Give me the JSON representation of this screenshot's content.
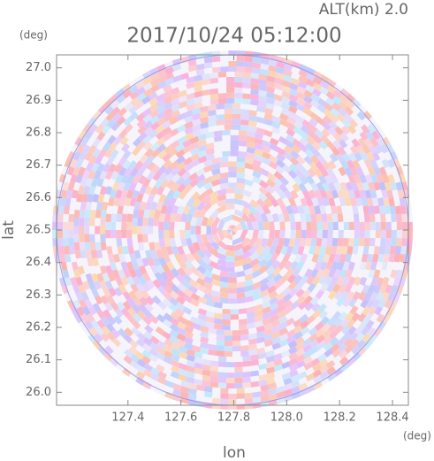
{
  "chart_data": {
    "type": "radar-ppi",
    "title": "2017/10/24 05:12:00",
    "annotation": "ALT(km) 2.0",
    "x_label": "lon",
    "y_label": "lat",
    "x_unit": "(deg)",
    "y_unit": "(deg)",
    "xlim": [
      127.13,
      128.46
    ],
    "ylim": [
      25.96,
      27.04
    ],
    "xticks": [
      127.4,
      127.6,
      127.8,
      {
        "value": 128,
        "label": "128.0"
      },
      128.2,
      128.4
    ],
    "yticks": [
      {
        "value": 26,
        "label": "26.0"
      },
      26.1,
      26.2,
      26.3,
      26.4,
      26.5,
      26.6,
      26.7,
      26.8,
      26.9,
      {
        "value": 27,
        "label": "27.0"
      }
    ]
  }
}
